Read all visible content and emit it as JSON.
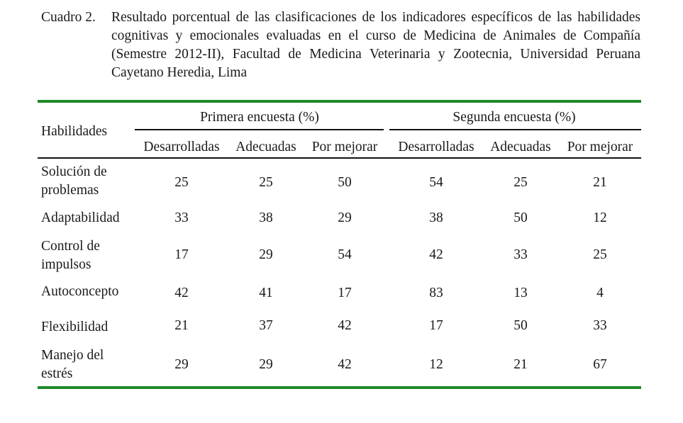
{
  "caption": {
    "label": "Cuadro 2.",
    "text": "Resultado porcentual de las clasificaciones de los indicadores específicos de las habilidades cognitivas y emocionales evaluadas en el curso de Medicina de Animales de Compañía (Semestre 2012-II), Facultad de Medicina Veterinaria y Zootecnia, Universidad Peruana Cayetano Heredia, Lima"
  },
  "table": {
    "row_header": "Habilidades",
    "groups": [
      "Primera encuesta (%)",
      "Segunda encuesta (%)"
    ],
    "subheaders": [
      "Desarrolladas",
      "Adecuadas",
      "Por mejorar",
      "Desarrolladas",
      "Adecuadas",
      "Por mejorar"
    ],
    "rows": [
      {
        "label": "Solución de problemas",
        "values": [
          "25",
          "25",
          "50",
          "54",
          "25",
          "21"
        ]
      },
      {
        "label": "Adaptabilidad",
        "values": [
          "33",
          "38",
          "29",
          "38",
          "50",
          "12"
        ]
      },
      {
        "label": "Control de impulsos",
        "values": [
          "17",
          "29",
          "54",
          "42",
          "33",
          "25"
        ]
      },
      {
        "label": "Autoconcepto",
        "values": [
          "42",
          "41",
          "17",
          "83",
          "13",
          "4"
        ]
      },
      {
        "label": "Flexibilidad",
        "values": [
          "21",
          "37",
          "42",
          "17",
          "50",
          "33"
        ]
      },
      {
        "label": "Manejo del estrés",
        "values": [
          "29",
          "29",
          "42",
          "12",
          "21",
          "67"
        ]
      }
    ]
  },
  "colors": {
    "rule_green": "#1f8a28",
    "text": "#1a1a1a"
  }
}
